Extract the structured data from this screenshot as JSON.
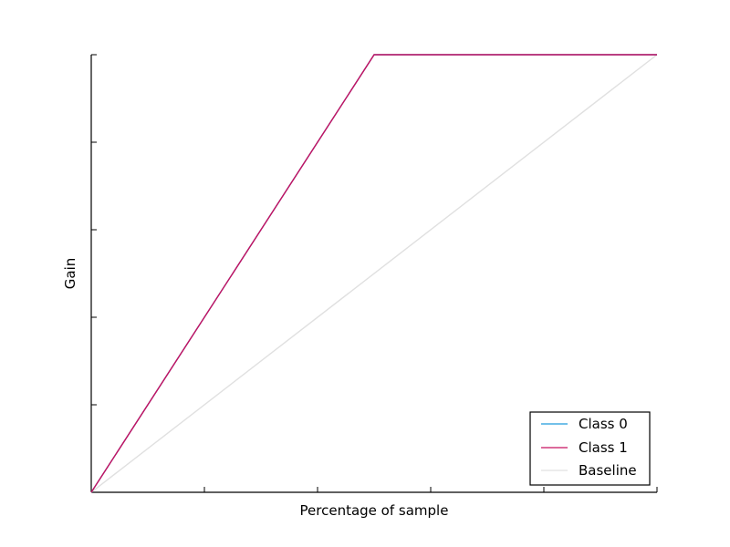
{
  "chart_data": {
    "type": "line",
    "title": "",
    "xlabel": "Percentage of sample",
    "ylabel": "Gain",
    "xlim": [
      0,
      1
    ],
    "ylim": [
      0,
      1
    ],
    "x_ticks": [
      0,
      0.2,
      0.4,
      0.6,
      0.8,
      1.0
    ],
    "y_ticks": [
      0,
      0.2,
      0.4,
      0.6,
      0.8,
      1.0
    ],
    "tick_labels_shown": false,
    "grid": false,
    "legend": {
      "placement": "bottom-right"
    },
    "series": [
      {
        "name": "Class 0",
        "color": "#1f9bdc",
        "x": [
          0,
          0.5,
          1.0
        ],
        "y": [
          0,
          1.0,
          1.0
        ]
      },
      {
        "name": "Class 1",
        "color": "#c8105f",
        "x": [
          0,
          0.5,
          1.0
        ],
        "y": [
          0,
          1.0,
          1.0
        ]
      },
      {
        "name": "Baseline",
        "color": "#e0e0e0",
        "x": [
          0,
          1.0
        ],
        "y": [
          0,
          1.0
        ]
      }
    ]
  }
}
